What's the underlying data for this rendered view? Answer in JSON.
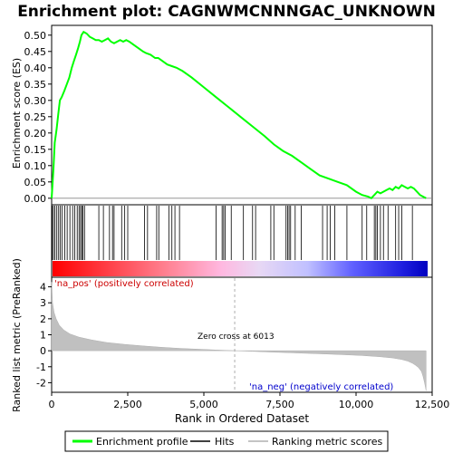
{
  "chart_data": {
    "type": "line",
    "title": "Enrichment plot: CAGNWMCNNNGAC_UNKNOWN",
    "xlabel": "Rank in Ordered Dataset",
    "panels": {
      "enrichment": {
        "ylabel": "Enrichment score (ES)",
        "ylim": [
          -0.02,
          0.53
        ],
        "yticks": [
          "0.00",
          "0.05",
          "0.10",
          "0.15",
          "0.20",
          "0.25",
          "0.30",
          "0.35",
          "0.40",
          "0.45",
          "0.50"
        ],
        "series": [
          {
            "name": "Enrichment profile",
            "color": "#00ff00",
            "x": [
              0,
              60,
              100,
              160,
              220,
              270,
              330,
              420,
              500,
              580,
              660,
              730,
              800,
              870,
              930,
              980,
              1050,
              1150,
              1250,
              1350,
              1450,
              1550,
              1650,
              1750,
              1850,
              1950,
              2050,
              2150,
              2250,
              2350,
              2450,
              2550,
              2700,
              2850,
              3000,
              3100,
              3250,
              3400,
              3500,
              3650,
              3800,
              3950,
              4100,
              4300,
              4600,
              5000,
              5400,
              5800,
              6200,
              6600,
              7000,
              7300,
              7600,
              7900,
              8200,
              8500,
              8800,
              9100,
              9400,
              9700,
              10000,
              10200,
              10400,
              10500,
              10600,
              10700,
              10800,
              10900,
              11000,
              11100,
              11200,
              11300,
              11400,
              11500,
              11600,
              11700,
              11800,
              11900,
              12000,
              12100,
              12200,
              12300
            ],
            "y": [
              0.0,
              0.09,
              0.17,
              0.21,
              0.26,
              0.3,
              0.31,
              0.33,
              0.35,
              0.37,
              0.4,
              0.42,
              0.44,
              0.46,
              0.48,
              0.5,
              0.51,
              0.505,
              0.495,
              0.49,
              0.485,
              0.485,
              0.48,
              0.485,
              0.49,
              0.48,
              0.475,
              0.48,
              0.485,
              0.48,
              0.485,
              0.48,
              0.47,
              0.46,
              0.45,
              0.445,
              0.44,
              0.43,
              0.43,
              0.42,
              0.41,
              0.405,
              0.4,
              0.39,
              0.37,
              0.34,
              0.31,
              0.28,
              0.25,
              0.22,
              0.19,
              0.165,
              0.145,
              0.13,
              0.11,
              0.09,
              0.07,
              0.06,
              0.05,
              0.04,
              0.02,
              0.01,
              0.005,
              0.0,
              0.01,
              0.02,
              0.015,
              0.02,
              0.025,
              0.03,
              0.025,
              0.035,
              0.03,
              0.04,
              0.035,
              0.03,
              0.035,
              0.03,
              0.02,
              0.01,
              0.005,
              0.0
            ]
          }
        ]
      },
      "hits": {
        "name": "Hits",
        "positions": [
          20,
          60,
          110,
          170,
          230,
          280,
          340,
          430,
          510,
          600,
          690,
          760,
          840,
          900,
          950,
          990,
          1030,
          1080,
          1550,
          1700,
          1900,
          2000,
          2050,
          2300,
          2400,
          2500,
          3050,
          3150,
          3450,
          3520,
          3850,
          3950,
          4050,
          4200,
          5400,
          5600,
          5650,
          5700,
          5900,
          6300,
          6600,
          6700,
          7200,
          7300,
          7700,
          7750,
          7800,
          7850,
          8000,
          8200,
          8900,
          9050,
          9150,
          9300,
          9700,
          10200,
          10350,
          10600,
          10650,
          10700,
          10800,
          10900,
          11050,
          11300,
          11400,
          11500,
          11850
        ]
      },
      "ranked_metric": {
        "ylabel": "Ranked list metric (PreRanked)",
        "ylim": [
          -2.6,
          4.6
        ],
        "yticks": [
          "-2",
          "-1",
          "0",
          "1",
          "2",
          "3",
          "4"
        ],
        "x": [
          0,
          30,
          80,
          150,
          250,
          400,
          600,
          900,
          1300,
          1800,
          2400,
          3000,
          3600,
          4200,
          4800,
          5400,
          6013,
          6600,
          7200,
          7800,
          8400,
          9000,
          9600,
          10200,
          10800,
          11200,
          11500,
          11700,
          11850,
          11950,
          12050,
          12150,
          12200,
          12250,
          12300
        ],
        "values": [
          4.3,
          3.0,
          2.4,
          2.0,
          1.6,
          1.3,
          1.05,
          0.85,
          0.68,
          0.52,
          0.4,
          0.3,
          0.22,
          0.15,
          0.1,
          0.05,
          0.0,
          -0.04,
          -0.08,
          -0.12,
          -0.16,
          -0.2,
          -0.25,
          -0.3,
          -0.38,
          -0.45,
          -0.55,
          -0.65,
          -0.78,
          -0.9,
          -1.05,
          -1.3,
          -1.6,
          -2.0,
          -2.5
        ]
      }
    },
    "xticks": [
      "0",
      "2,500",
      "5,000",
      "7,500",
      "10,000",
      "12,500"
    ],
    "xlim": [
      0,
      12500
    ],
    "zero_cross": 6013,
    "annotations": {
      "pos_label": "'na_pos' (positively correlated)",
      "neg_label": "'na_neg' (negatively correlated)",
      "zero_cross_label": "Zero cross at 6013"
    },
    "legend": {
      "placement": "bottom",
      "entries": [
        {
          "label": "Enrichment profile",
          "color": "#00ff00"
        },
        {
          "label": "Hits",
          "color": "#000000"
        },
        {
          "label": "Ranking metric scores",
          "color": "#b0b0b0"
        }
      ]
    },
    "colors": {
      "pos_label": "#cc0000",
      "neg_label": "#0000cc",
      "metric_fill": "#c0c0c0",
      "gradient": [
        "#ff0000",
        "#ff7a8c",
        "#ffb0dd",
        "#e8d0f0",
        "#c8c8ff",
        "#4040ff",
        "#0000cc"
      ]
    }
  }
}
